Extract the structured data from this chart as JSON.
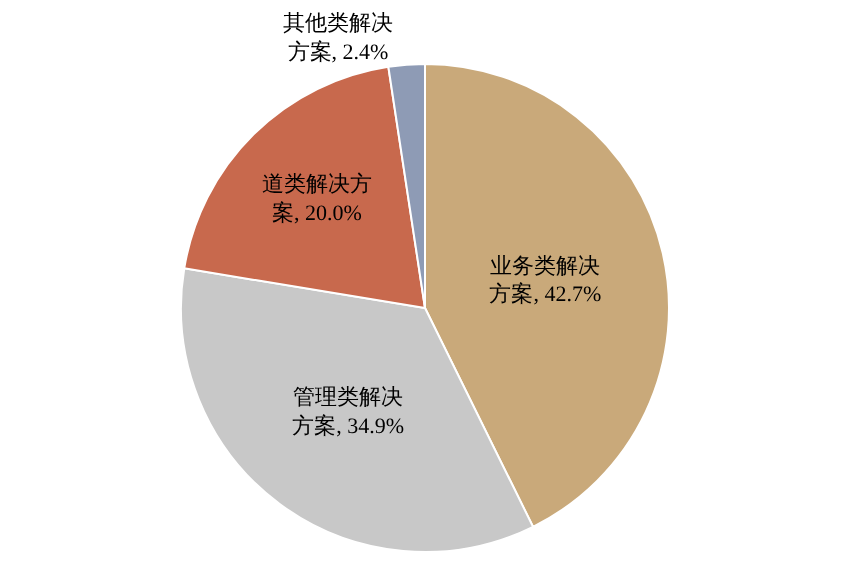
{
  "chart_data": {
    "type": "pie",
    "categories": [
      "业务类解决方案",
      "管理类解决方案",
      "道类解决方案",
      "其他类解决方案"
    ],
    "values": [
      42.7,
      34.9,
      20.0,
      2.4
    ],
    "value_labels": [
      "42.7%",
      "34.9%",
      "20.0%",
      "2.4%"
    ],
    "colors": [
      "#c9a97a",
      "#c8c8c8",
      "#c8694d",
      "#8e9bb5"
    ],
    "legend": false
  }
}
